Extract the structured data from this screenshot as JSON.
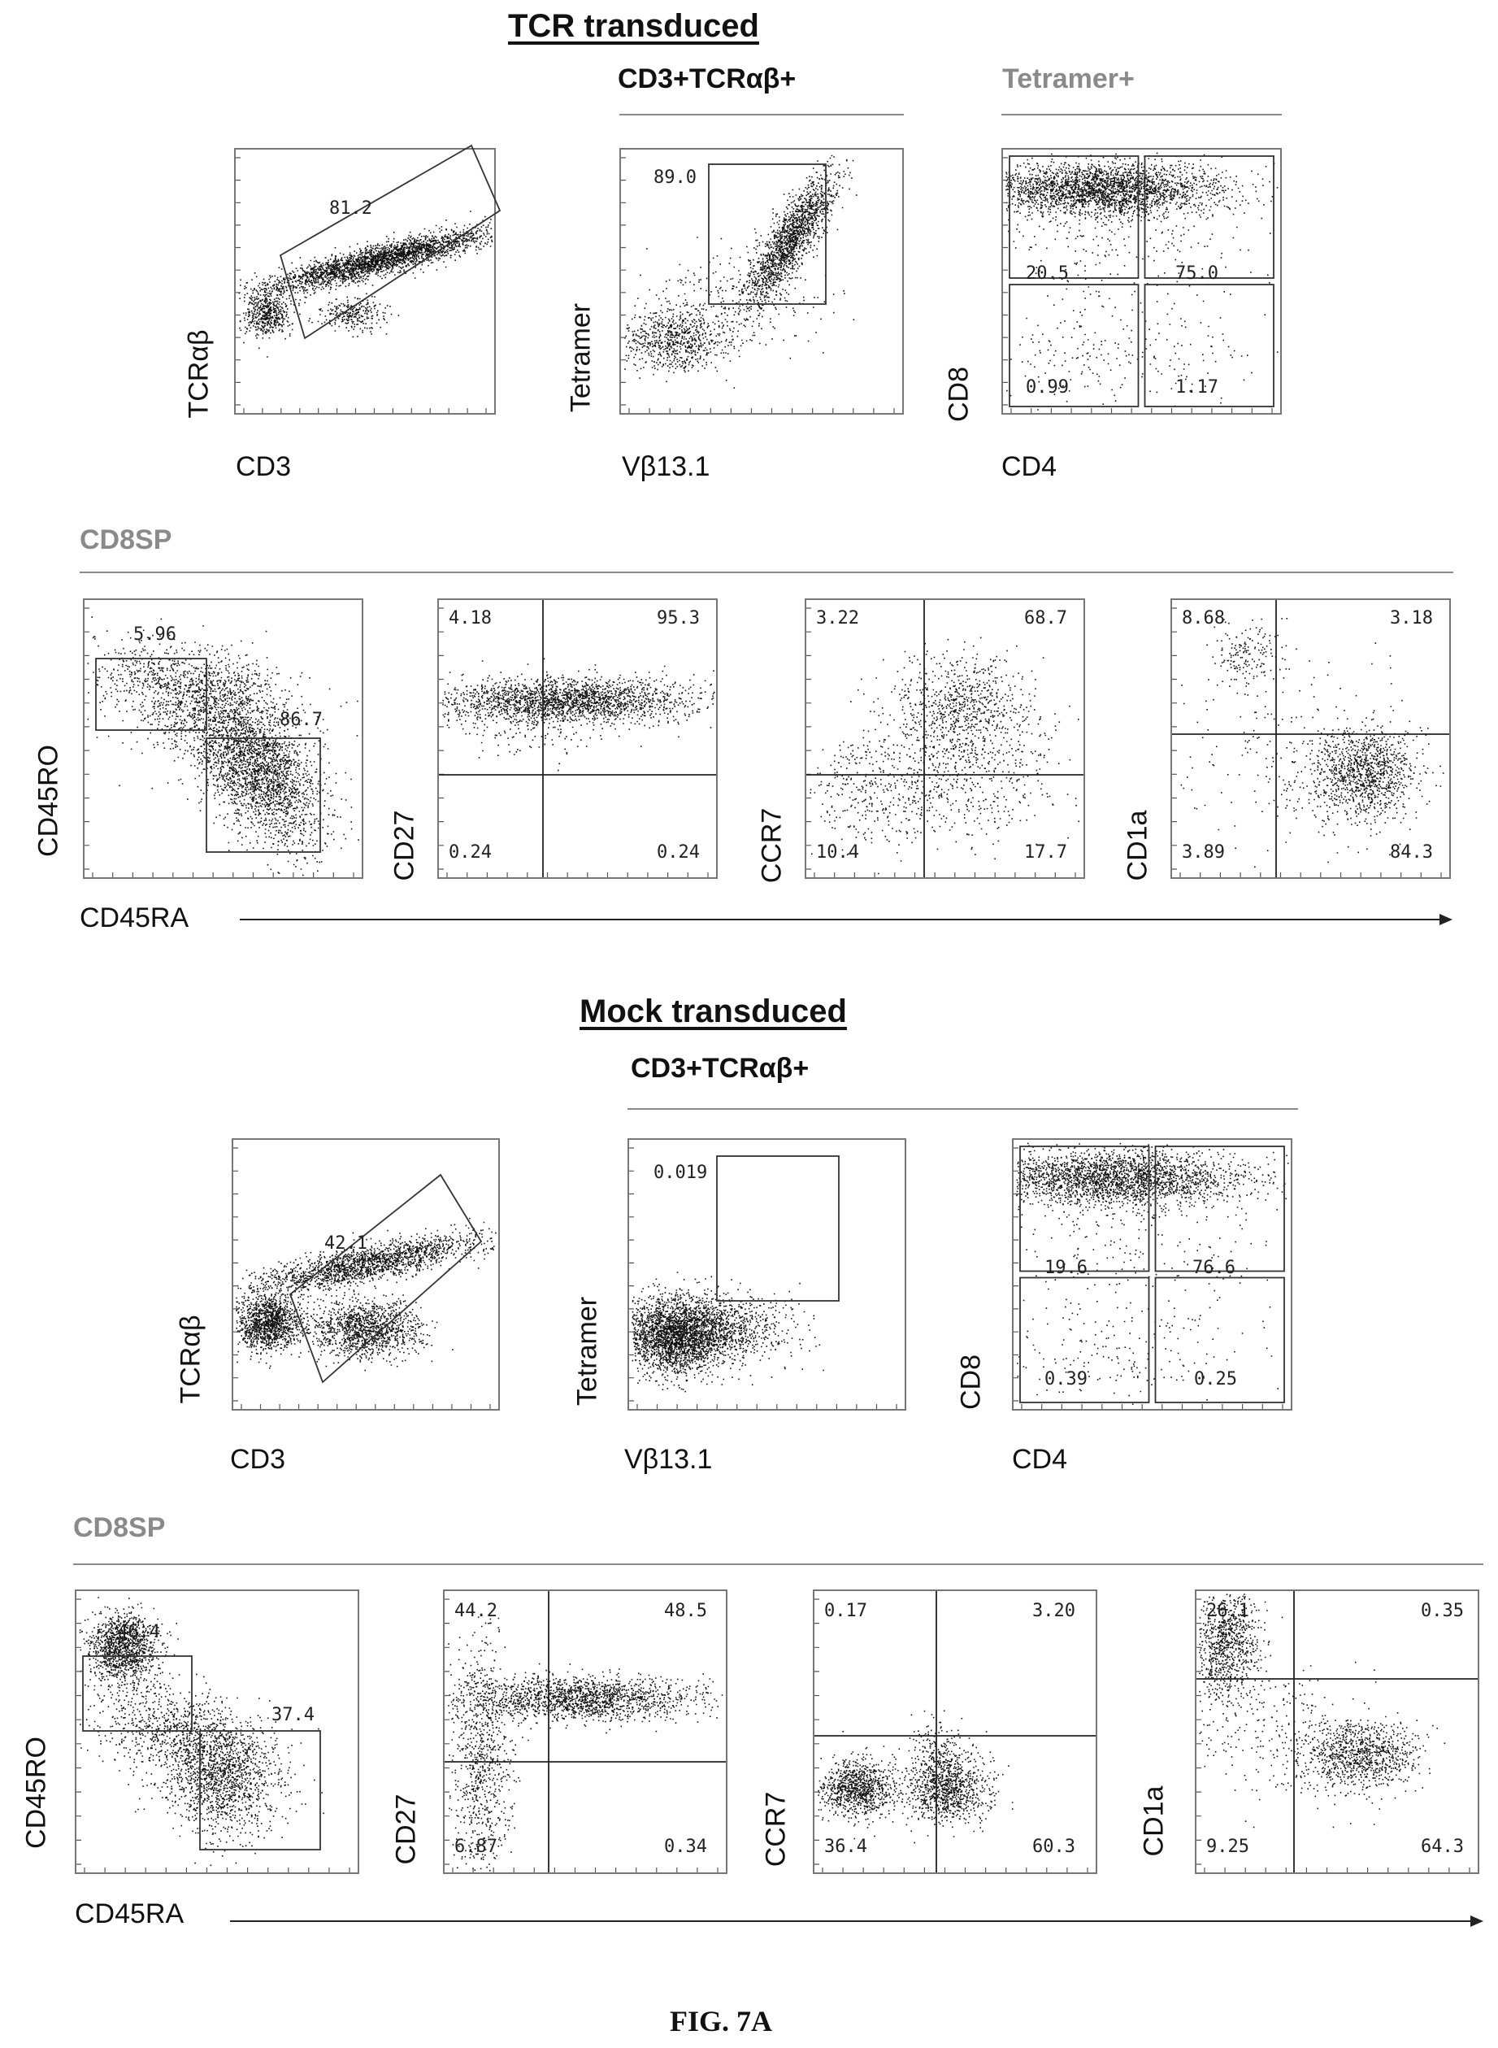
{
  "sections": {
    "tcr_title": "TCR transduced",
    "mock_title": "Mock transduced",
    "group_cd3tcr": "CD3+TCRαβ+",
    "group_tetramer": "Tetramer+",
    "group_cd8sp": "CD8SP"
  },
  "figure_label": "FIG. 7A",
  "chart_data": [
    {
      "type": "scatter",
      "id": "tcr-cd3-tcrab",
      "xlabel": "CD3",
      "ylabel": "TCRαβ",
      "gates": [
        {
          "shape": "polygon",
          "value": "81.2"
        }
      ]
    },
    {
      "type": "scatter",
      "id": "tcr-vb-tetramer",
      "xlabel": "Vβ13.1",
      "ylabel": "Tetramer",
      "gates": [
        {
          "shape": "rect",
          "value": "89.0"
        }
      ]
    },
    {
      "type": "scatter",
      "id": "tcr-cd4-cd8",
      "xlabel": "CD4",
      "ylabel": "CD8",
      "gates": [
        {
          "quadrant": "upper-left",
          "value": "20.5"
        },
        {
          "quadrant": "upper-right",
          "value": "75.0"
        },
        {
          "quadrant": "lower-left",
          "value": "0.99"
        },
        {
          "quadrant": "lower-right",
          "value": "1.17"
        }
      ]
    },
    {
      "type": "scatter",
      "id": "tcr-cd45ra-cd45ro",
      "xlabel": "CD45RA",
      "ylabel": "CD45RO",
      "gates": [
        {
          "shape": "rect",
          "value": "5.96"
        },
        {
          "shape": "rect",
          "value": "86.7"
        }
      ]
    },
    {
      "type": "scatter",
      "id": "tcr-cd27",
      "ylabel": "CD27",
      "quadrants": {
        "upper-left": "4.18",
        "upper-right": "95.3",
        "lower-left": "0.24",
        "lower-right": "0.24"
      }
    },
    {
      "type": "scatter",
      "id": "tcr-ccr7",
      "ylabel": "CCR7",
      "quadrants": {
        "upper-left": "3.22",
        "upper-right": "68.7",
        "lower-left": "10.4",
        "lower-right": "17.7"
      }
    },
    {
      "type": "scatter",
      "id": "tcr-cd1a",
      "ylabel": "CD1a",
      "quadrants": {
        "upper-left": "8.68",
        "upper-right": "3.18",
        "lower-left": "3.89",
        "lower-right": "84.3"
      }
    },
    {
      "type": "scatter",
      "id": "mock-cd3-tcrab",
      "xlabel": "CD3",
      "ylabel": "TCRαβ",
      "gates": [
        {
          "shape": "polygon",
          "value": "42.1"
        }
      ]
    },
    {
      "type": "scatter",
      "id": "mock-vb-tetramer",
      "xlabel": "Vβ13.1",
      "ylabel": "Tetramer",
      "gates": [
        {
          "shape": "rect",
          "value": "0.019"
        }
      ]
    },
    {
      "type": "scatter",
      "id": "mock-cd4-cd8",
      "xlabel": "CD4",
      "ylabel": "CD8",
      "gates": [
        {
          "quadrant": "upper-left",
          "value": "19.6"
        },
        {
          "quadrant": "upper-right",
          "value": "76.6"
        },
        {
          "quadrant": "lower-left",
          "value": "0.39"
        },
        {
          "quadrant": "lower-right",
          "value": "0.25"
        }
      ]
    },
    {
      "type": "scatter",
      "id": "mock-cd45ra-cd45ro",
      "xlabel": "CD45RA",
      "ylabel": "CD45RO",
      "gates": [
        {
          "shape": "rect",
          "value": "46.4"
        },
        {
          "shape": "rect",
          "value": "37.4"
        }
      ]
    },
    {
      "type": "scatter",
      "id": "mock-cd27",
      "ylabel": "CD27",
      "quadrants": {
        "upper-left": "44.2",
        "upper-right": "48.5",
        "lower-left": "6.87",
        "lower-right": "0.34"
      }
    },
    {
      "type": "scatter",
      "id": "mock-ccr7",
      "ylabel": "CCR7",
      "quadrants": {
        "upper-left": "0.17",
        "upper-right": "3.20",
        "lower-left": "36.4",
        "lower-right": "60.3"
      }
    },
    {
      "type": "scatter",
      "id": "mock-cd1a",
      "ylabel": "CD1a",
      "quadrants": {
        "upper-left": "26.1",
        "upper-right": "0.35",
        "lower-left": "9.25",
        "lower-right": "64.3"
      }
    }
  ]
}
